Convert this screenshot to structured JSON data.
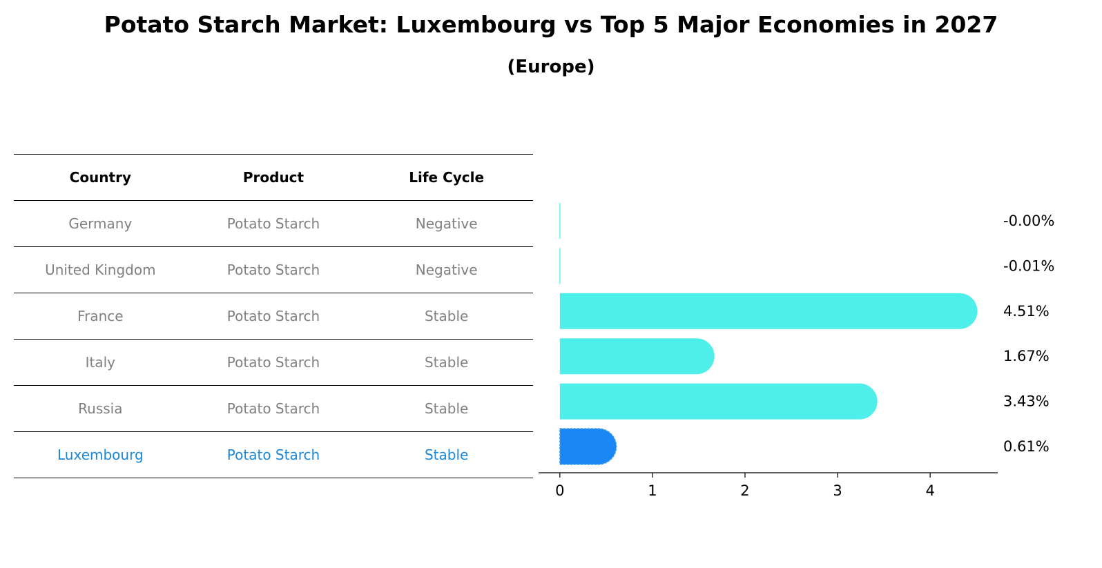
{
  "title": "Potato Starch Market: Luxembourg vs Top 5 Major Economies in 2027",
  "subtitle": "(Europe)",
  "table": {
    "headers": [
      "Country",
      "Product",
      "Life Cycle"
    ],
    "rows": [
      {
        "country": "Germany",
        "product": "Potato Starch",
        "life_cycle": "Negative"
      },
      {
        "country": "United Kingdom",
        "product": "Potato Starch",
        "life_cycle": "Negative"
      },
      {
        "country": "France",
        "product": "Potato Starch",
        "life_cycle": "Stable"
      },
      {
        "country": "Italy",
        "product": "Potato Starch",
        "life_cycle": "Stable"
      },
      {
        "country": "Russia",
        "product": "Potato Starch",
        "life_cycle": "Stable"
      },
      {
        "country": "Luxembourg",
        "product": "Potato Starch",
        "life_cycle": "Stable"
      }
    ]
  },
  "chart_data": {
    "type": "bar",
    "orientation": "horizontal",
    "categories": [
      "Germany",
      "United Kingdom",
      "France",
      "Italy",
      "Russia",
      "Luxembourg"
    ],
    "values": [
      -0.0,
      -0.01,
      4.51,
      1.67,
      3.43,
      0.61
    ],
    "value_labels": [
      "-0.00%",
      "-0.01%",
      "4.51%",
      "1.67%",
      "3.43%",
      "0.61%"
    ],
    "xticks": [
      0,
      1,
      2,
      3,
      4
    ],
    "xlim": [
      -0.23,
      4.73
    ],
    "grid": false,
    "colors": {
      "default": "#4eeeea",
      "highlight": "#1a87f5"
    },
    "highlight": "Luxembourg"
  }
}
